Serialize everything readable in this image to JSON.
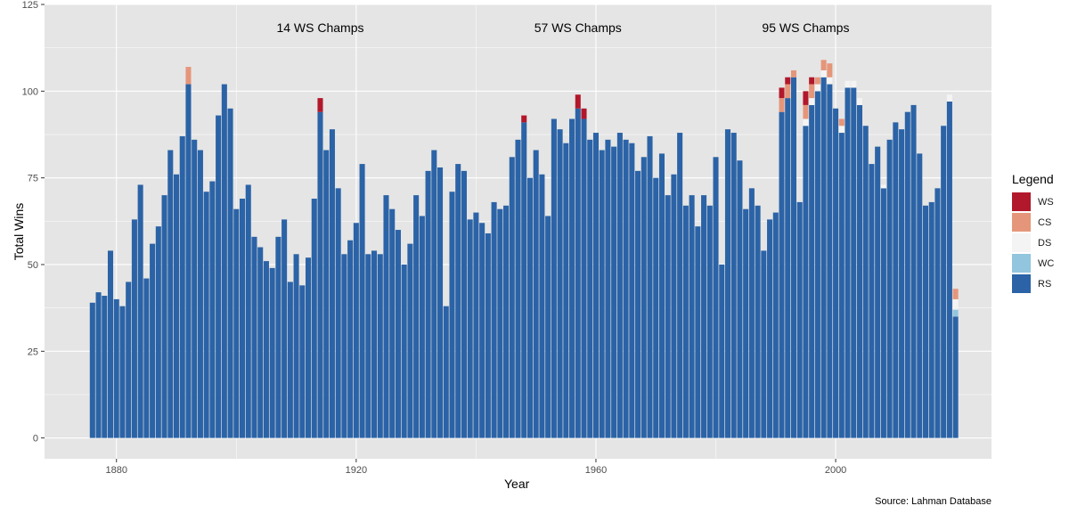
{
  "chart_data": {
    "type": "bar",
    "stacked": true,
    "xlabel": "Year",
    "ylabel": "Total Wins",
    "caption": "Source: Lahman Database",
    "xlim": [
      1868,
      2026
    ],
    "ylim": [
      -6,
      125
    ],
    "x_ticks": [
      1880,
      1920,
      1960,
      2000
    ],
    "y_ticks": [
      0,
      25,
      50,
      75,
      100,
      125
    ],
    "grid": true,
    "legend_position": "right",
    "legend": {
      "title": "Legend",
      "entries": [
        "WS",
        "CS",
        "DS",
        "WC",
        "RS"
      ]
    },
    "colors": {
      "WS": "#b2182b",
      "CS": "#e5967a",
      "DS": "#f4f4f4",
      "WC": "#92c5de",
      "RS": "#2b63a6",
      "panel": "#e5e5e5",
      "grid": "#ffffff"
    },
    "annotations": [
      {
        "text": "14 WS Champs",
        "x": 1914
      },
      {
        "text": "57 WS Champs",
        "x": 1957
      },
      {
        "text": "95 WS Champs",
        "x": 1995
      }
    ],
    "years": [
      1876,
      1877,
      1878,
      1879,
      1880,
      1881,
      1882,
      1883,
      1884,
      1885,
      1886,
      1887,
      1888,
      1889,
      1890,
      1891,
      1892,
      1893,
      1894,
      1895,
      1896,
      1897,
      1898,
      1899,
      1900,
      1901,
      1902,
      1903,
      1904,
      1905,
      1906,
      1907,
      1908,
      1909,
      1910,
      1911,
      1912,
      1913,
      1914,
      1915,
      1916,
      1917,
      1918,
      1919,
      1920,
      1921,
      1922,
      1923,
      1924,
      1925,
      1926,
      1927,
      1928,
      1929,
      1930,
      1931,
      1932,
      1933,
      1934,
      1935,
      1936,
      1937,
      1938,
      1939,
      1940,
      1941,
      1942,
      1943,
      1944,
      1945,
      1946,
      1947,
      1948,
      1949,
      1950,
      1951,
      1952,
      1953,
      1954,
      1955,
      1956,
      1957,
      1958,
      1959,
      1960,
      1961,
      1962,
      1963,
      1964,
      1965,
      1966,
      1967,
      1968,
      1969,
      1970,
      1971,
      1972,
      1973,
      1974,
      1975,
      1976,
      1977,
      1978,
      1979,
      1980,
      1981,
      1982,
      1983,
      1984,
      1985,
      1986,
      1987,
      1988,
      1989,
      1990,
      1991,
      1992,
      1993,
      1994,
      1995,
      1996,
      1997,
      1998,
      1999,
      2000,
      2001,
      2002,
      2003,
      2004,
      2005,
      2006,
      2007,
      2008,
      2009,
      2010,
      2011,
      2012,
      2013,
      2014,
      2015,
      2016,
      2017,
      2018,
      2019,
      2020
    ],
    "series": [
      {
        "name": "RS",
        "values": [
          39,
          42,
          41,
          54,
          40,
          38,
          45,
          63,
          73,
          46,
          56,
          61,
          70,
          83,
          76,
          87,
          102,
          86,
          83,
          71,
          74,
          93,
          102,
          95,
          66,
          69,
          73,
          58,
          55,
          51,
          49,
          58,
          63,
          45,
          53,
          44,
          52,
          69,
          94,
          83,
          89,
          72,
          53,
          57,
          62,
          79,
          53,
          54,
          53,
          70,
          66,
          60,
          50,
          56,
          70,
          64,
          77,
          83,
          78,
          38,
          71,
          79,
          77,
          63,
          65,
          62,
          59,
          68,
          66,
          67,
          81,
          86,
          91,
          75,
          83,
          76,
          64,
          92,
          89,
          85,
          92,
          95,
          92,
          86,
          88,
          83,
          86,
          84,
          88,
          86,
          85,
          77,
          81,
          87,
          75,
          82,
          70,
          76,
          88,
          67,
          70,
          61,
          70,
          67,
          81,
          50,
          89,
          88,
          80,
          66,
          72,
          67,
          54,
          63,
          65,
          94,
          98,
          104,
          68,
          90,
          96,
          100,
          104,
          102,
          95,
          88,
          101,
          101,
          96,
          90,
          79,
          84,
          72,
          86,
          91,
          89,
          94,
          96,
          82,
          67,
          68,
          72,
          90,
          97,
          35
        ]
      },
      {
        "name": "WC",
        "values": [
          0,
          0,
          0,
          0,
          0,
          0,
          0,
          0,
          0,
          0,
          0,
          0,
          0,
          0,
          0,
          0,
          0,
          0,
          0,
          0,
          0,
          0,
          0,
          0,
          0,
          0,
          0,
          0,
          0,
          0,
          0,
          0,
          0,
          0,
          0,
          0,
          0,
          0,
          0,
          0,
          0,
          0,
          0,
          0,
          0,
          0,
          0,
          0,
          0,
          0,
          0,
          0,
          0,
          0,
          0,
          0,
          0,
          0,
          0,
          0,
          0,
          0,
          0,
          0,
          0,
          0,
          0,
          0,
          0,
          0,
          0,
          0,
          0,
          0,
          0,
          0,
          0,
          0,
          0,
          0,
          0,
          0,
          0,
          0,
          0,
          0,
          0,
          0,
          0,
          0,
          0,
          0,
          0,
          0,
          0,
          0,
          0,
          0,
          0,
          0,
          0,
          0,
          0,
          0,
          0,
          0,
          0,
          0,
          0,
          0,
          0,
          0,
          0,
          0,
          0,
          0,
          0,
          0,
          0,
          0,
          0,
          0,
          0,
          0,
          0,
          0,
          0,
          0,
          0,
          0,
          0,
          0,
          0,
          0,
          0,
          0,
          0,
          0,
          0,
          0,
          0,
          0,
          0,
          0,
          2
        ]
      },
      {
        "name": "DS",
        "values": [
          0,
          0,
          0,
          0,
          0,
          0,
          0,
          0,
          0,
          0,
          0,
          0,
          0,
          0,
          0,
          0,
          0,
          0,
          0,
          0,
          0,
          0,
          0,
          0,
          0,
          0,
          0,
          0,
          0,
          0,
          0,
          0,
          0,
          0,
          0,
          0,
          0,
          0,
          0,
          0,
          0,
          0,
          0,
          0,
          0,
          0,
          0,
          0,
          0,
          0,
          0,
          0,
          0,
          0,
          0,
          0,
          0,
          0,
          0,
          0,
          0,
          0,
          0,
          0,
          0,
          0,
          0,
          0,
          0,
          0,
          0,
          0,
          0,
          0,
          0,
          0,
          0,
          0,
          0,
          0,
          0,
          0,
          0,
          0,
          0,
          0,
          0,
          0,
          0,
          0,
          0,
          0,
          0,
          0,
          0,
          0,
          0,
          0,
          0,
          0,
          0,
          0,
          0,
          0,
          0,
          0,
          0,
          0,
          0,
          0,
          0,
          0,
          0,
          0,
          0,
          0,
          0,
          0,
          0,
          2,
          2,
          2,
          2,
          2,
          0,
          2,
          2,
          2,
          2,
          0,
          0,
          0,
          1,
          0,
          0,
          0,
          0,
          0,
          0,
          0,
          0,
          0,
          0,
          2,
          3
        ]
      },
      {
        "name": "CS",
        "values": [
          0,
          0,
          0,
          0,
          0,
          0,
          0,
          0,
          0,
          0,
          0,
          0,
          0,
          0,
          0,
          0,
          5,
          0,
          0,
          0,
          0,
          0,
          0,
          0,
          0,
          0,
          0,
          0,
          0,
          0,
          0,
          0,
          0,
          0,
          0,
          0,
          0,
          0,
          0,
          0,
          0,
          0,
          0,
          0,
          0,
          0,
          0,
          0,
          0,
          0,
          0,
          0,
          0,
          0,
          0,
          0,
          0,
          0,
          0,
          0,
          0,
          0,
          0,
          0,
          0,
          0,
          0,
          0,
          0,
          0,
          0,
          0,
          0,
          0,
          0,
          0,
          0,
          0,
          0,
          0,
          0,
          0,
          0,
          0,
          0,
          0,
          0,
          0,
          0,
          0,
          0,
          0,
          0,
          0,
          0,
          0,
          0,
          0,
          0,
          0,
          0,
          0,
          0,
          0,
          0,
          0,
          0,
          0,
          0,
          0,
          0,
          0,
          0,
          0,
          0,
          4,
          4,
          2,
          0,
          4,
          4,
          2,
          3,
          4,
          0,
          2,
          0,
          0,
          0,
          0,
          0,
          0,
          0,
          0,
          0,
          0,
          0,
          0,
          0,
          0,
          0,
          0,
          0,
          0,
          3
        ]
      },
      {
        "name": "WS",
        "values": [
          0,
          0,
          0,
          0,
          0,
          0,
          0,
          0,
          0,
          0,
          0,
          0,
          0,
          0,
          0,
          0,
          0,
          0,
          0,
          0,
          0,
          0,
          0,
          0,
          0,
          0,
          0,
          0,
          0,
          0,
          0,
          0,
          0,
          0,
          0,
          0,
          0,
          0,
          4,
          0,
          0,
          0,
          0,
          0,
          0,
          0,
          0,
          0,
          0,
          0,
          0,
          0,
          0,
          0,
          0,
          0,
          0,
          0,
          0,
          0,
          0,
          0,
          0,
          0,
          0,
          0,
          0,
          0,
          0,
          0,
          0,
          0,
          2,
          0,
          0,
          0,
          0,
          0,
          0,
          0,
          0,
          4,
          3,
          0,
          0,
          0,
          0,
          0,
          0,
          0,
          0,
          0,
          0,
          0,
          0,
          0,
          0,
          0,
          0,
          0,
          0,
          0,
          0,
          0,
          0,
          0,
          0,
          0,
          0,
          0,
          0,
          0,
          0,
          0,
          0,
          3,
          2,
          0,
          0,
          4,
          2,
          0,
          0,
          0,
          0,
          0,
          0,
          0,
          0,
          0,
          0,
          0,
          0,
          0,
          0,
          0,
          0,
          0,
          0,
          0,
          0,
          0,
          0,
          0,
          0
        ]
      }
    ]
  }
}
